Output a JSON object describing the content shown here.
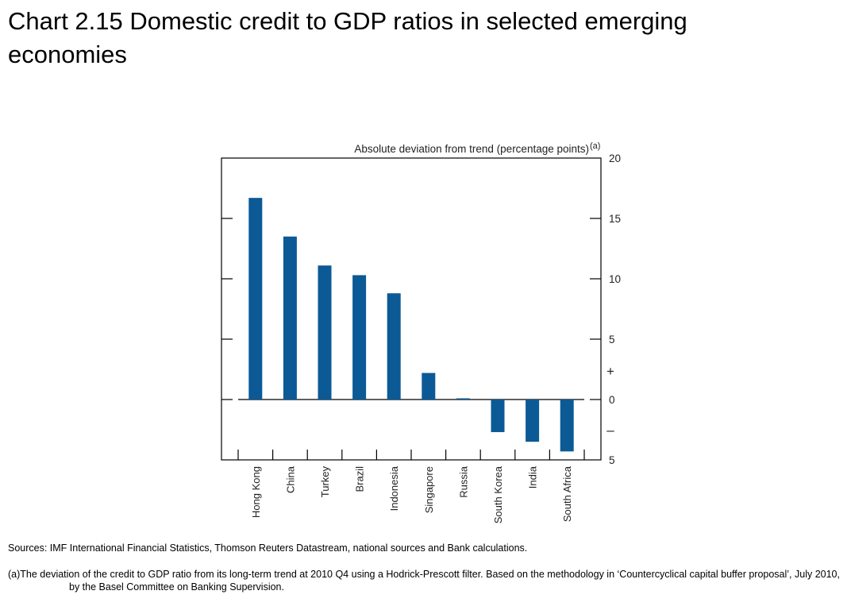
{
  "title": "Chart 2.15  Domestic credit to GDP ratios in selected emerging economies",
  "chart_data": {
    "type": "bar",
    "ylabel": "Absolute deviation from trend (percentage points)",
    "ylabel_superscript": "(a)",
    "categories": [
      "Hong Kong",
      "China",
      "Turkey",
      "Brazil",
      "Indonesia",
      "Singapore",
      "Russia",
      "South Korea",
      "India",
      "South Africa"
    ],
    "values": [
      16.7,
      13.5,
      11.1,
      10.3,
      8.8,
      2.2,
      0.1,
      -2.7,
      -3.5,
      -4.3
    ],
    "ylim": [
      -5,
      20
    ],
    "yticks": [
      20,
      15,
      10,
      5,
      0,
      -5
    ],
    "ytick_labels": [
      "20",
      "15",
      "10",
      "5",
      "0",
      "5"
    ],
    "plus_sign": "+",
    "minus_sign": "–",
    "bar_color": "#0b5a96",
    "grid": false,
    "legend": "none"
  },
  "sources": "Sources:  IMF International Financial Statistics, Thomson Reuters Datastream, national sources and Bank calculations.",
  "footnote": "(a)The deviation of the credit to GDP ratio from its long-term trend at 2010 Q4 using a Hodrick-Prescott filter.  Based on the methodology in ‘Countercyclical capital buffer proposal’, July 2010, by the Basel Committee on Banking Supervision."
}
